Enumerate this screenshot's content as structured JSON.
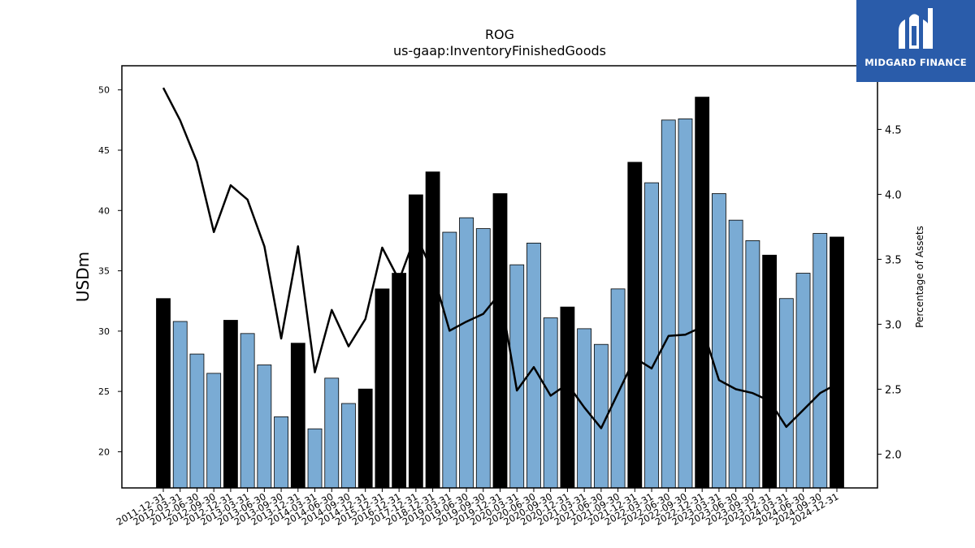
{
  "chart_data": {
    "type": "bar",
    "title": "ROG",
    "subtitle": "us-gaap:InventoryFinishedGoods",
    "ylabel": "USDm",
    "y2label": "Percentage of Assets",
    "ylim": [
      17,
      52
    ],
    "y2lim": [
      1.74,
      4.99
    ],
    "yticks": [
      20,
      25,
      30,
      35,
      40,
      45,
      50
    ],
    "y2ticks": [
      2.0,
      2.5,
      3.0,
      3.5,
      4.0,
      4.5
    ],
    "categories": [
      "2011-12-31",
      "2012-03-31",
      "2012-06-30",
      "2012-09-30",
      "2012-12-31",
      "2013-03-31",
      "2013-06-30",
      "2013-09-30",
      "2013-12-31",
      "2014-03-31",
      "2014-06-30",
      "2014-09-30",
      "2014-12-31",
      "2015-12-31",
      "2016-12-31",
      "2017-12-31",
      "2018-12-31",
      "2019-03-31",
      "2019-06-30",
      "2019-09-30",
      "2019-12-31",
      "2020-03-31",
      "2020-06-30",
      "2020-09-30",
      "2020-12-31",
      "2021-03-31",
      "2021-06-30",
      "2021-09-30",
      "2021-12-31",
      "2022-03-31",
      "2022-06-30",
      "2022-09-30",
      "2022-12-31",
      "2023-03-31",
      "2023-06-30",
      "2023-09-30",
      "2023-12-31",
      "2024-03-31",
      "2024-06-30",
      "2024-09-30",
      "2024-12-31"
    ],
    "series": [
      {
        "kind": "bar",
        "values": [
          32.7,
          30.8,
          28.1,
          26.5,
          30.9,
          29.8,
          27.2,
          22.9,
          29.0,
          21.9,
          26.1,
          24.0,
          25.2,
          33.5,
          34.8,
          41.3,
          43.2,
          38.2,
          39.4,
          38.5,
          41.4,
          35.5,
          37.3,
          31.1,
          32.0,
          30.2,
          28.9,
          33.5,
          44.0,
          42.3,
          47.5,
          47.6,
          49.4,
          41.4,
          39.2,
          37.5,
          36.3,
          32.7,
          34.8,
          38.1,
          37.8
        ],
        "annual": [
          true,
          false,
          false,
          false,
          true,
          false,
          false,
          false,
          true,
          false,
          false,
          false,
          true,
          true,
          true,
          true,
          true,
          false,
          false,
          false,
          true,
          false,
          false,
          false,
          true,
          false,
          false,
          false,
          true,
          false,
          false,
          false,
          true,
          false,
          false,
          false,
          true,
          false,
          false,
          false,
          true
        ],
        "colors": {
          "annual": "#000000",
          "quarterly": "#7aabd4",
          "edge": "#000000"
        }
      },
      {
        "kind": "line",
        "axis": "right",
        "values": [
          4.82,
          4.57,
          4.25,
          3.71,
          4.07,
          3.96,
          3.6,
          2.89,
          3.6,
          2.63,
          3.11,
          2.83,
          3.04,
          3.59,
          3.34,
          3.69,
          3.4,
          2.95,
          3.02,
          3.08,
          3.24,
          2.49,
          2.67,
          2.45,
          2.54,
          2.36,
          2.2,
          2.47,
          2.74,
          2.66,
          2.91,
          2.92,
          2.98,
          2.57,
          2.5,
          2.47,
          2.41,
          2.21,
          2.34,
          2.47,
          2.54
        ],
        "color": "#000000"
      }
    ]
  },
  "logo": {
    "text": "MIDGARD FINANCE"
  }
}
